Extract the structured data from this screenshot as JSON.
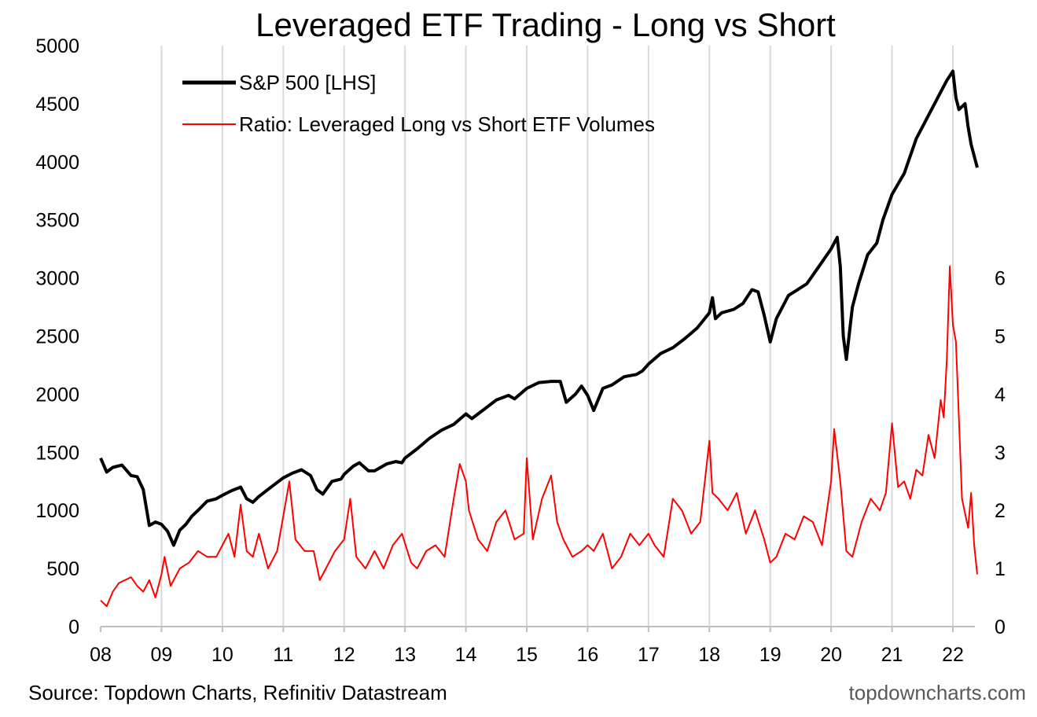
{
  "footer": {
    "source": "Source: Topdown Charts, Refinitiv Datastream",
    "brand": "topdowncharts.com"
  },
  "chart_data": {
    "type": "line",
    "title": "Leveraged ETF Trading - Long vs Short",
    "xlabel": "",
    "ylabel_left": "",
    "ylabel_right": "",
    "x_range": [
      2008.0,
      2022.4
    ],
    "x_ticks": [
      {
        "label": "08",
        "value": 2008
      },
      {
        "label": "09",
        "value": 2009
      },
      {
        "label": "10",
        "value": 2010
      },
      {
        "label": "11",
        "value": 2011
      },
      {
        "label": "12",
        "value": 2012
      },
      {
        "label": "13",
        "value": 2013
      },
      {
        "label": "14",
        "value": 2014
      },
      {
        "label": "15",
        "value": 2015
      },
      {
        "label": "16",
        "value": 2016
      },
      {
        "label": "17",
        "value": 2017
      },
      {
        "label": "18",
        "value": 2018
      },
      {
        "label": "19",
        "value": 2019
      },
      {
        "label": "20",
        "value": 2020
      },
      {
        "label": "21",
        "value": 2021
      },
      {
        "label": "22",
        "value": 2022
      }
    ],
    "y_left": {
      "min": 0,
      "max": 5000,
      "ticks": [
        "0",
        "500",
        "1000",
        "1500",
        "2000",
        "2500",
        "3000",
        "3500",
        "4000",
        "4500",
        "5000"
      ]
    },
    "y_right": {
      "min": 0,
      "max": 10,
      "ticks": [
        "0",
        "1",
        "2",
        "3",
        "4",
        "5",
        "6"
      ]
    },
    "grid": "vertical",
    "legend_position": "top-left",
    "colors": {
      "sp500": "#000000",
      "ratio": "#ff0000",
      "grid": "#d9d9d9",
      "axis": "#bfbfbf"
    },
    "series": [
      {
        "name": "S&P 500 [LHS]",
        "axis": "left",
        "x": [
          2008.0,
          2008.1,
          2008.2,
          2008.35,
          2008.5,
          2008.6,
          2008.7,
          2008.8,
          2008.9,
          2009.0,
          2009.1,
          2009.2,
          2009.3,
          2009.4,
          2009.5,
          2009.6,
          2009.75,
          2009.9,
          2010.0,
          2010.15,
          2010.3,
          2010.4,
          2010.5,
          2010.6,
          2010.75,
          2010.9,
          2011.0,
          2011.15,
          2011.3,
          2011.45,
          2011.55,
          2011.65,
          2011.8,
          2011.95,
          2012.0,
          2012.15,
          2012.25,
          2012.4,
          2012.5,
          2012.7,
          2012.85,
          2012.95,
          2013.0,
          2013.2,
          2013.4,
          2013.6,
          2013.8,
          2014.0,
          2014.1,
          2014.3,
          2014.5,
          2014.7,
          2014.8,
          2015.0,
          2015.2,
          2015.4,
          2015.55,
          2015.65,
          2015.8,
          2015.9,
          2016.0,
          2016.1,
          2016.25,
          2016.4,
          2016.6,
          2016.8,
          2016.9,
          2017.0,
          2017.2,
          2017.4,
          2017.6,
          2017.8,
          2018.0,
          2018.05,
          2018.1,
          2018.2,
          2018.4,
          2018.55,
          2018.7,
          2018.8,
          2018.9,
          2019.0,
          2019.1,
          2019.3,
          2019.45,
          2019.6,
          2019.8,
          2020.0,
          2020.1,
          2020.15,
          2020.2,
          2020.25,
          2020.35,
          2020.45,
          2020.6,
          2020.75,
          2020.85,
          2021.0,
          2021.2,
          2021.4,
          2021.6,
          2021.8,
          2021.9,
          2022.0,
          2022.05,
          2022.1,
          2022.2,
          2022.25,
          2022.3,
          2022.4
        ],
        "values": [
          1450,
          1330,
          1370,
          1390,
          1300,
          1290,
          1180,
          870,
          900,
          880,
          820,
          700,
          830,
          880,
          950,
          1000,
          1080,
          1100,
          1130,
          1170,
          1200,
          1100,
          1070,
          1120,
          1180,
          1240,
          1280,
          1320,
          1350,
          1300,
          1180,
          1140,
          1250,
          1270,
          1310,
          1380,
          1410,
          1340,
          1340,
          1400,
          1420,
          1410,
          1450,
          1530,
          1620,
          1690,
          1740,
          1830,
          1790,
          1870,
          1950,
          1990,
          1960,
          2050,
          2100,
          2110,
          2110,
          1930,
          2000,
          2070,
          1990,
          1860,
          2050,
          2080,
          2150,
          2170,
          2200,
          2260,
          2350,
          2400,
          2480,
          2570,
          2700,
          2830,
          2650,
          2700,
          2730,
          2780,
          2900,
          2880,
          2680,
          2450,
          2650,
          2850,
          2900,
          2950,
          3100,
          3250,
          3350,
          3100,
          2500,
          2300,
          2750,
          2950,
          3200,
          3300,
          3500,
          3720,
          3900,
          4200,
          4400,
          4600,
          4700,
          4780,
          4550,
          4450,
          4500,
          4300,
          4150,
          3950
        ]
      },
      {
        "name": "Ratio: Leveraged Long vs Short ETF Volumes",
        "axis": "right",
        "x": [
          2008.0,
          2008.1,
          2008.2,
          2008.3,
          2008.4,
          2008.5,
          2008.6,
          2008.7,
          2008.8,
          2008.9,
          2009.0,
          2009.05,
          2009.15,
          2009.3,
          2009.45,
          2009.6,
          2009.75,
          2009.9,
          2010.0,
          2010.1,
          2010.2,
          2010.3,
          2010.4,
          2010.5,
          2010.6,
          2010.75,
          2010.9,
          2011.0,
          2011.1,
          2011.2,
          2011.35,
          2011.5,
          2011.6,
          2011.7,
          2011.85,
          2012.0,
          2012.1,
          2012.2,
          2012.35,
          2012.5,
          2012.65,
          2012.8,
          2012.95,
          2013.1,
          2013.2,
          2013.35,
          2013.5,
          2013.65,
          2013.8,
          2013.9,
          2014.0,
          2014.05,
          2014.2,
          2014.35,
          2014.5,
          2014.65,
          2014.8,
          2014.95,
          2015.0,
          2015.1,
          2015.25,
          2015.4,
          2015.5,
          2015.6,
          2015.75,
          2015.9,
          2016.0,
          2016.1,
          2016.25,
          2016.4,
          2016.55,
          2016.7,
          2016.85,
          2017.0,
          2017.1,
          2017.25,
          2017.4,
          2017.55,
          2017.7,
          2017.85,
          2018.0,
          2018.05,
          2018.15,
          2018.3,
          2018.45,
          2018.6,
          2018.75,
          2018.9,
          2019.0,
          2019.1,
          2019.25,
          2019.4,
          2019.55,
          2019.7,
          2019.85,
          2020.0,
          2020.05,
          2020.15,
          2020.25,
          2020.35,
          2020.5,
          2020.65,
          2020.8,
          2020.9,
          2021.0,
          2021.1,
          2021.2,
          2021.3,
          2021.4,
          2021.5,
          2021.6,
          2021.7,
          2021.8,
          2021.85,
          2021.9,
          2021.95,
          2022.0,
          2022.05,
          2022.15,
          2022.25,
          2022.3,
          2022.35,
          2022.4
        ],
        "values": [
          0.45,
          0.35,
          0.6,
          0.75,
          0.8,
          0.85,
          0.7,
          0.6,
          0.8,
          0.5,
          0.9,
          1.2,
          0.7,
          1.0,
          1.1,
          1.3,
          1.2,
          1.2,
          1.4,
          1.6,
          1.2,
          2.1,
          1.3,
          1.2,
          1.6,
          1.0,
          1.3,
          1.9,
          2.5,
          1.5,
          1.3,
          1.3,
          0.8,
          1.0,
          1.3,
          1.5,
          2.2,
          1.2,
          1.0,
          1.3,
          1.0,
          1.4,
          1.6,
          1.1,
          1.0,
          1.3,
          1.4,
          1.2,
          2.2,
          2.8,
          2.5,
          2.0,
          1.5,
          1.3,
          1.8,
          2.0,
          1.5,
          1.6,
          2.9,
          1.5,
          2.2,
          2.6,
          1.8,
          1.5,
          1.2,
          1.3,
          1.4,
          1.3,
          1.6,
          1.0,
          1.2,
          1.6,
          1.4,
          1.6,
          1.4,
          1.2,
          2.2,
          2.0,
          1.6,
          1.8,
          3.2,
          2.3,
          2.2,
          2.0,
          2.3,
          1.6,
          2.0,
          1.5,
          1.1,
          1.2,
          1.6,
          1.5,
          1.9,
          1.8,
          1.4,
          2.5,
          3.4,
          2.5,
          1.3,
          1.2,
          1.8,
          2.2,
          2.0,
          2.3,
          3.5,
          2.4,
          2.5,
          2.2,
          2.7,
          2.6,
          3.3,
          2.9,
          3.9,
          3.6,
          4.6,
          6.2,
          5.2,
          4.9,
          2.2,
          1.7,
          2.3,
          1.4,
          0.9
        ]
      }
    ]
  }
}
